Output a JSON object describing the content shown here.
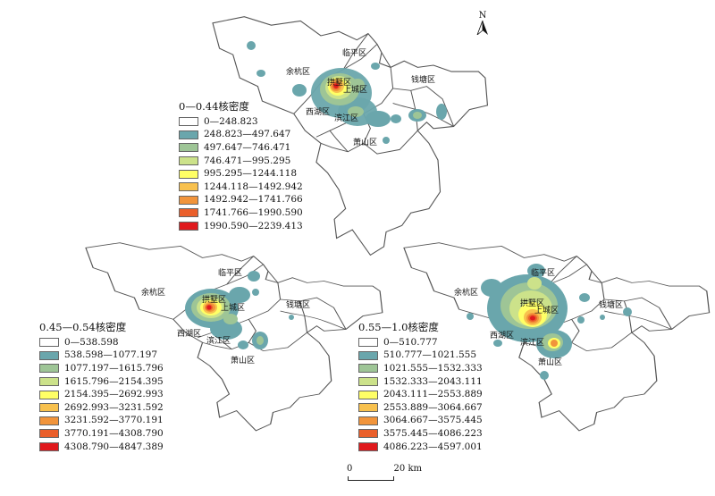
{
  "north_label": "N",
  "scale": {
    "zero": "0",
    "distance": "20 km"
  },
  "colors": {
    "c0": "#ffffff",
    "c1": "#6aa6ac",
    "c2": "#9ec596",
    "c3": "#cce28a",
    "c4": "#ffff66",
    "c5": "#f8c14e",
    "c6": "#f1943b",
    "c7": "#ea5f2b",
    "c8": "#e0191d"
  },
  "maps": [
    {
      "title": "0—0.44核密度",
      "legend": [
        "0—248.823",
        "248.823—497.647",
        "497.647—746.471",
        "746.471—995.295",
        "995.295—1244.118",
        "1244.118—1492.942",
        "1492.942—1741.766",
        "1741.766—1990.590",
        "1990.590—2239.413"
      ],
      "districts": [
        "临平区",
        "余杭区",
        "钱塘区",
        "拱墅区",
        "上城区",
        "西湖区",
        "滨江区",
        "萧山区"
      ]
    },
    {
      "title": "0.45—0.54核密度",
      "legend": [
        "0—538.598",
        "538.598—1077.197",
        "1077.197—1615.796",
        "1615.796—2154.395",
        "2154.395—2692.993",
        "2692.993—3231.592",
        "3231.592—3770.191",
        "3770.191—4308.790",
        "4308.790—4847.389"
      ],
      "districts": [
        "临平区",
        "余杭区",
        "钱塘区",
        "拱墅区",
        "上城区",
        "西湖区",
        "滨江区",
        "萧山区"
      ]
    },
    {
      "title": "0.55—1.0核密度",
      "legend": [
        "0—510.777",
        "510.777—1021.555",
        "1021.555—1532.333",
        "1532.333—2043.111",
        "2043.111—2553.889",
        "2553.889—3064.667",
        "3064.667—3575.445",
        "3575.445—4086.223",
        "4086.223—4597.001"
      ],
      "districts": [
        "临平区",
        "余杭区",
        "钱塘区",
        "拱墅区",
        "上城区",
        "西湖区",
        "滨江区",
        "萧山区"
      ]
    }
  ]
}
